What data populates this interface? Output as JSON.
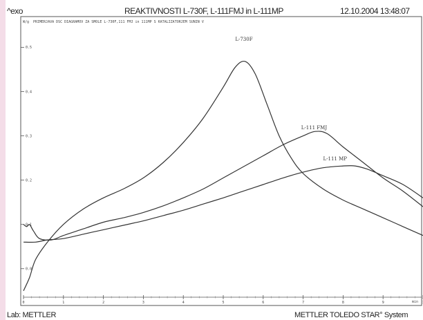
{
  "header": {
    "left": "^exo",
    "title": "REAKTIVNOSTI L-730F, L-111FMJ in L-111MP",
    "datetime": "12.10.2004 13:48:07"
  },
  "footer": {
    "left": "Lab: METTLER",
    "right": "METTLER TOLEDO STAR° System"
  },
  "chart_data": {
    "type": "line",
    "subtitle": "PRIMERJAVA DSC DIAGRAMOV ZA SMOLE L-730F,111 FMJ in 111MP S KATALIZATORJEM SUNIN V",
    "ylabel": "W/g",
    "xlabel": "min",
    "xlim": [
      0,
      10
    ],
    "ylim": [
      -0.08,
      0.56
    ],
    "x_ticks": [
      "0",
      "1",
      "2",
      "3",
      "4",
      "5",
      "6",
      "7",
      "8",
      "9",
      "10"
    ],
    "y_ticks": [
      "0.5",
      "0.4",
      "0.3",
      "0.2",
      "0.1",
      "0.0"
    ],
    "grid": false,
    "series": [
      {
        "name": "L-730F",
        "label_at": [
          5.3,
          0.515
        ],
        "points": [
          [
            0,
            -0.05
          ],
          [
            0.15,
            -0.02
          ],
          [
            0.3,
            0.02
          ],
          [
            0.6,
            0.06
          ],
          [
            1,
            0.1
          ],
          [
            1.5,
            0.135
          ],
          [
            2,
            0.16
          ],
          [
            2.5,
            0.18
          ],
          [
            3,
            0.205
          ],
          [
            3.5,
            0.24
          ],
          [
            4,
            0.285
          ],
          [
            4.5,
            0.34
          ],
          [
            5,
            0.41
          ],
          [
            5.3,
            0.455
          ],
          [
            5.55,
            0.468
          ],
          [
            5.8,
            0.44
          ],
          [
            6.1,
            0.37
          ],
          [
            6.4,
            0.3
          ],
          [
            6.7,
            0.25
          ],
          [
            7,
            0.215
          ],
          [
            7.5,
            0.18
          ],
          [
            8,
            0.155
          ],
          [
            8.5,
            0.135
          ],
          [
            9,
            0.115
          ],
          [
            9.5,
            0.095
          ],
          [
            10,
            0.075
          ]
        ]
      },
      {
        "name": "L-111 FMJ",
        "label_at": [
          6.95,
          0.315
        ],
        "points": [
          [
            0,
            0.1
          ],
          [
            0.08,
            0.095
          ],
          [
            0.15,
            0.1
          ],
          [
            0.25,
            0.085
          ],
          [
            0.4,
            0.068
          ],
          [
            0.7,
            0.065
          ],
          [
            1,
            0.075
          ],
          [
            1.5,
            0.09
          ],
          [
            2,
            0.105
          ],
          [
            2.5,
            0.115
          ],
          [
            3,
            0.127
          ],
          [
            3.5,
            0.142
          ],
          [
            4,
            0.16
          ],
          [
            4.5,
            0.18
          ],
          [
            5,
            0.205
          ],
          [
            5.5,
            0.23
          ],
          [
            6,
            0.255
          ],
          [
            6.5,
            0.28
          ],
          [
            7,
            0.3
          ],
          [
            7.3,
            0.31
          ],
          [
            7.6,
            0.305
          ],
          [
            8,
            0.275
          ],
          [
            8.5,
            0.24
          ],
          [
            9,
            0.205
          ],
          [
            9.5,
            0.175
          ],
          [
            10,
            0.14
          ]
        ]
      },
      {
        "name": "L-111 MP",
        "label_at": [
          7.5,
          0.245
        ],
        "points": [
          [
            0,
            0.06
          ],
          [
            0.3,
            0.06
          ],
          [
            0.6,
            0.065
          ],
          [
            1,
            0.068
          ],
          [
            1.5,
            0.078
          ],
          [
            2,
            0.088
          ],
          [
            2.5,
            0.098
          ],
          [
            3,
            0.108
          ],
          [
            3.5,
            0.12
          ],
          [
            4,
            0.132
          ],
          [
            4.5,
            0.146
          ],
          [
            5,
            0.16
          ],
          [
            5.5,
            0.175
          ],
          [
            6,
            0.19
          ],
          [
            6.5,
            0.205
          ],
          [
            7,
            0.218
          ],
          [
            7.5,
            0.228
          ],
          [
            8,
            0.232
          ],
          [
            8.3,
            0.232
          ],
          [
            8.6,
            0.225
          ],
          [
            9,
            0.21
          ],
          [
            9.5,
            0.19
          ],
          [
            10,
            0.16
          ]
        ]
      }
    ]
  }
}
